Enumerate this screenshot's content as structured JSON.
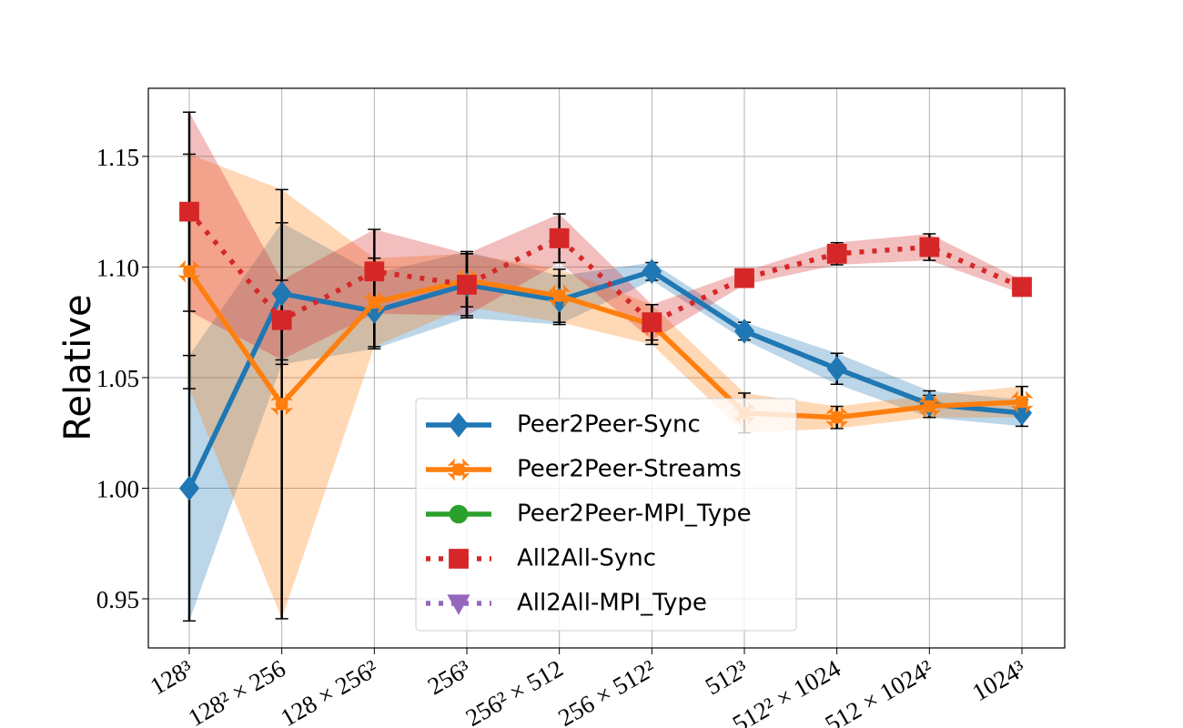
{
  "chart_data": {
    "type": "line",
    "ylabel": "Relative",
    "categories": [
      "128³",
      "128² × 256",
      "128 × 256²",
      "256³",
      "256² × 512",
      "256 × 512²",
      "512³",
      "512² × 1024",
      "512 × 1024²",
      "1024³"
    ],
    "ylim": [
      0.9278,
      1.1808
    ],
    "yticks": [
      0.95,
      {
        "value": 1.0,
        "label": "1.00"
      },
      1.05,
      {
        "value": 1.1,
        "label": "1.10"
      },
      1.15
    ],
    "grid": true,
    "series": [
      {
        "name": "Peer2Peer-Sync",
        "color": "#1f77b4",
        "marker": "diamond",
        "linestyle": "solid",
        "values": [
          1.0,
          1.088,
          1.08,
          1.092,
          1.085,
          1.098,
          1.071,
          1.054,
          1.038,
          1.034
        ],
        "errors": [
          0.06,
          0.032,
          0.017,
          0.015,
          0.011,
          0.004,
          0.004,
          0.007,
          0.006,
          0.006
        ]
      },
      {
        "name": "Peer2Peer-Streams",
        "color": "#ff7f0e",
        "marker": "x",
        "linestyle": "solid",
        "values": [
          1.098,
          1.038,
          1.084,
          1.094,
          1.087,
          1.074,
          1.034,
          1.032,
          1.037,
          1.039
        ],
        "errors": [
          0.053,
          0.097,
          0.02,
          0.012,
          0.012,
          0.009,
          0.009,
          0.005,
          0.005,
          0.007
        ]
      },
      {
        "name": "Peer2Peer-MPI_Type",
        "color": "#2ca02c",
        "marker": "circle",
        "linestyle": "solid",
        "values": [
          null,
          null,
          null,
          null,
          null,
          null,
          null,
          null,
          null,
          null
        ],
        "errors": [
          null,
          null,
          null,
          null,
          null,
          null,
          null,
          null,
          null,
          null
        ]
      },
      {
        "name": "All2All-Sync",
        "color": "#d62728",
        "marker": "square",
        "linestyle": "dotted",
        "values": [
          1.125,
          1.076,
          1.098,
          1.092,
          1.113,
          1.075,
          1.095,
          1.106,
          1.109,
          1.091
        ],
        "errors": [
          0.045,
          0.018,
          0.019,
          0.014,
          0.011,
          0.008,
          0.003,
          0.005,
          0.006,
          0.003
        ]
      },
      {
        "name": "All2All-MPI_Type",
        "color": "#9467bd",
        "marker": "triangle",
        "linestyle": "dotted",
        "values": [
          null,
          null,
          null,
          null,
          null,
          null,
          null,
          null,
          null,
          null
        ],
        "errors": [
          null,
          null,
          null,
          null,
          null,
          null,
          null,
          null,
          null,
          null
        ]
      }
    ]
  }
}
